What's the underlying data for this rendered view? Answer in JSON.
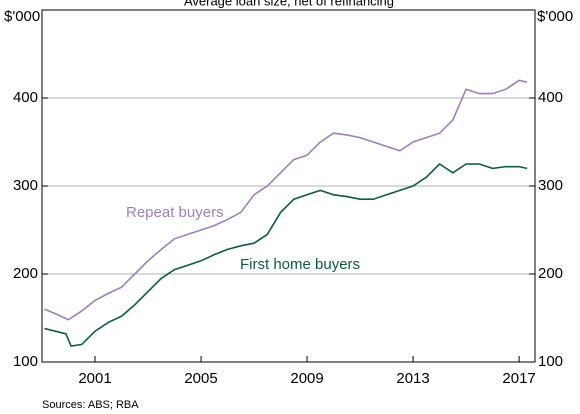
{
  "chart_data": {
    "type": "line",
    "title": "Average loan size, net of refinancing",
    "y_unit": "$'000",
    "source": "Sources: ABS; RBA",
    "annotations": [
      "Repeat buyers",
      "First home buyers"
    ],
    "xlim": [
      1999,
      2017.6
    ],
    "xticks": [
      2001,
      2005,
      2009,
      2013,
      2017
    ],
    "ylim": [
      100,
      500
    ],
    "yticks": [
      100,
      200,
      300,
      400
    ],
    "grid": true,
    "series": [
      {
        "name": "Repeat buyers",
        "color": "#9b7fc0",
        "x": [
          1999.1,
          1999.5,
          2000,
          2000.5,
          2001,
          2001.5,
          2002,
          2002.5,
          2003,
          2003.5,
          2004,
          2004.5,
          2005,
          2005.5,
          2006,
          2006.5,
          2007,
          2007.5,
          2008,
          2008.5,
          2009,
          2009.5,
          2010,
          2010.5,
          2011,
          2011.5,
          2012,
          2012.5,
          2013,
          2013.5,
          2014,
          2014.5,
          2015,
          2015.5,
          2016,
          2016.5,
          2017,
          2017.3
        ],
        "values": [
          160,
          155,
          148,
          158,
          170,
          178,
          185,
          200,
          215,
          228,
          240,
          245,
          250,
          255,
          262,
          270,
          290,
          300,
          315,
          330,
          335,
          350,
          360,
          358,
          355,
          350,
          345,
          340,
          350,
          355,
          360,
          375,
          410,
          405,
          405,
          410,
          420,
          418
        ]
      },
      {
        "name": "First home buyers",
        "color": "#0f5c3c",
        "x": [
          1999.1,
          1999.5,
          1999.9,
          2000.1,
          2000.5,
          2001,
          2001.5,
          2002,
          2002.5,
          2003,
          2003.5,
          2004,
          2004.5,
          2005,
          2005.5,
          2006,
          2006.5,
          2007,
          2007.5,
          2008,
          2008.5,
          2009,
          2009.5,
          2010,
          2010.5,
          2011,
          2011.5,
          2012,
          2012.5,
          2013,
          2013.5,
          2014,
          2014.5,
          2015,
          2015.5,
          2016,
          2016.5,
          2017,
          2017.3
        ],
        "values": [
          138,
          135,
          132,
          118,
          120,
          135,
          145,
          152,
          165,
          180,
          195,
          205,
          210,
          215,
          222,
          228,
          232,
          235,
          245,
          270,
          285,
          290,
          295,
          290,
          288,
          285,
          285,
          290,
          295,
          300,
          310,
          325,
          315,
          325,
          325,
          320,
          322,
          322,
          320
        ]
      }
    ]
  }
}
